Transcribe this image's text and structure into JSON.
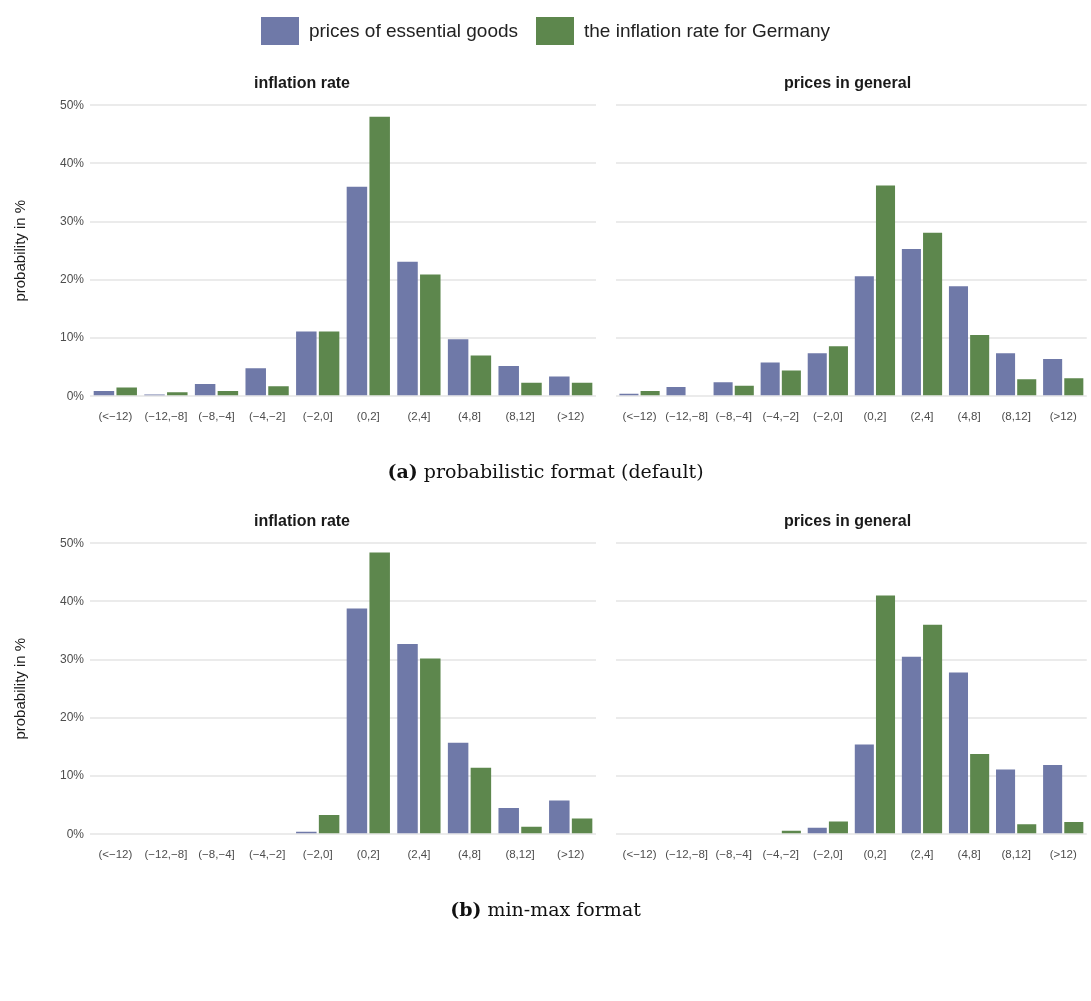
{
  "chart_data": [
    {
      "type": "bar",
      "title": "inflation rate",
      "ylabel": "probability in %",
      "legend": "top",
      "grid": "y",
      "categories": [
        "(<−12)",
        "(−12,−8]",
        "(−8,−4]",
        "(−4,−2]",
        "(−2,0]",
        "(0,2]",
        "(2,4]",
        "(4,8]",
        "(8,12]",
        "(>12)"
      ],
      "ylim": [
        0,
        50
      ],
      "yticks": [
        {
          "value": 0,
          "label": "0%"
        },
        {
          "value": 10,
          "label": "10%"
        },
        {
          "value": 20,
          "label": "20%"
        },
        {
          "value": 30,
          "label": "30%"
        },
        {
          "value": 40,
          "label": "40%"
        },
        {
          "value": 50,
          "label": "50%"
        }
      ],
      "annotations": [
        "(a) probabilistic format (default)"
      ],
      "series": [
        {
          "name": "prices of essential goods",
          "color": "#6f79a8",
          "values": [
            0.9,
            0.3,
            2.1,
            4.8,
            11.1,
            36.0,
            23.1,
            9.8,
            5.2,
            3.4
          ]
        },
        {
          "name": "the inflation rate for Germany",
          "color": "#5d874d",
          "values": [
            1.5,
            0.7,
            0.9,
            1.7,
            11.1,
            48.0,
            20.9,
            7.0,
            2.3,
            2.3
          ]
        }
      ]
    },
    {
      "type": "bar",
      "title": "prices in general",
      "grid": "y",
      "tick_labels": "x",
      "categories": [
        "(<−12)",
        "(−12,−8]",
        "(−8,−4]",
        "(−4,−2]",
        "(−2,0]",
        "(0,2]",
        "(2,4]",
        "(4,8]",
        "(8,12]",
        "(>12)"
      ],
      "ylim": [
        0,
        50
      ],
      "yticks": [
        0,
        10,
        20,
        30,
        40,
        50
      ],
      "series": [
        {
          "color": "#6f79a8",
          "values": [
            0.4,
            1.6,
            2.4,
            5.8,
            7.4,
            20.6,
            25.3,
            18.9,
            7.4,
            6.4
          ]
        },
        {
          "color": "#5d874d",
          "values": [
            0.9,
            0,
            1.8,
            4.4,
            8.6,
            36.2,
            28.1,
            10.5,
            2.9,
            3.1
          ]
        }
      ]
    },
    {
      "type": "bar",
      "title": "inflation rate",
      "ylabel": "probability in %",
      "grid": "y",
      "categories": [
        "(<−12)",
        "(−12,−8]",
        "(−8,−4]",
        "(−4,−2]",
        "(−2,0]",
        "(0,2]",
        "(2,4]",
        "(4,8]",
        "(8,12]",
        "(>12)"
      ],
      "ylim": [
        0,
        50
      ],
      "yticks": [
        {
          "value": 0,
          "label": "0%"
        },
        {
          "value": 10,
          "label": "10%"
        },
        {
          "value": 20,
          "label": "20%"
        },
        {
          "value": 30,
          "label": "30%"
        },
        {
          "value": 40,
          "label": "40%"
        },
        {
          "value": 50,
          "label": "50%"
        }
      ],
      "annotations": [
        "(b) min-max format"
      ],
      "series": [
        {
          "color": "#6f79a8",
          "values": [
            0,
            0,
            0,
            0,
            0.4,
            38.8,
            32.7,
            15.7,
            4.5,
            5.8
          ]
        },
        {
          "color": "#5d874d",
          "values": [
            0,
            0,
            0,
            0,
            3.3,
            48.4,
            30.2,
            11.4,
            1.3,
            2.7
          ]
        }
      ]
    },
    {
      "type": "bar",
      "title": "prices in general",
      "grid": "y",
      "tick_labels": "x",
      "categories": [
        "(<−12)",
        "(−12,−8]",
        "(−8,−4]",
        "(−4,−2]",
        "(−2,0]",
        "(0,2]",
        "(2,4]",
        "(4,8]",
        "(8,12]",
        "(>12)"
      ],
      "ylim": [
        0,
        50
      ],
      "yticks": [
        0,
        10,
        20,
        30,
        40,
        50
      ],
      "series": [
        {
          "color": "#6f79a8",
          "values": [
            0,
            0,
            0,
            0,
            1.1,
            15.4,
            30.5,
            27.8,
            11.1,
            11.9
          ]
        },
        {
          "color": "#5d874d",
          "values": [
            0,
            0,
            0,
            0.6,
            2.2,
            41.0,
            36.0,
            13.8,
            1.7,
            2.1
          ]
        }
      ]
    }
  ]
}
